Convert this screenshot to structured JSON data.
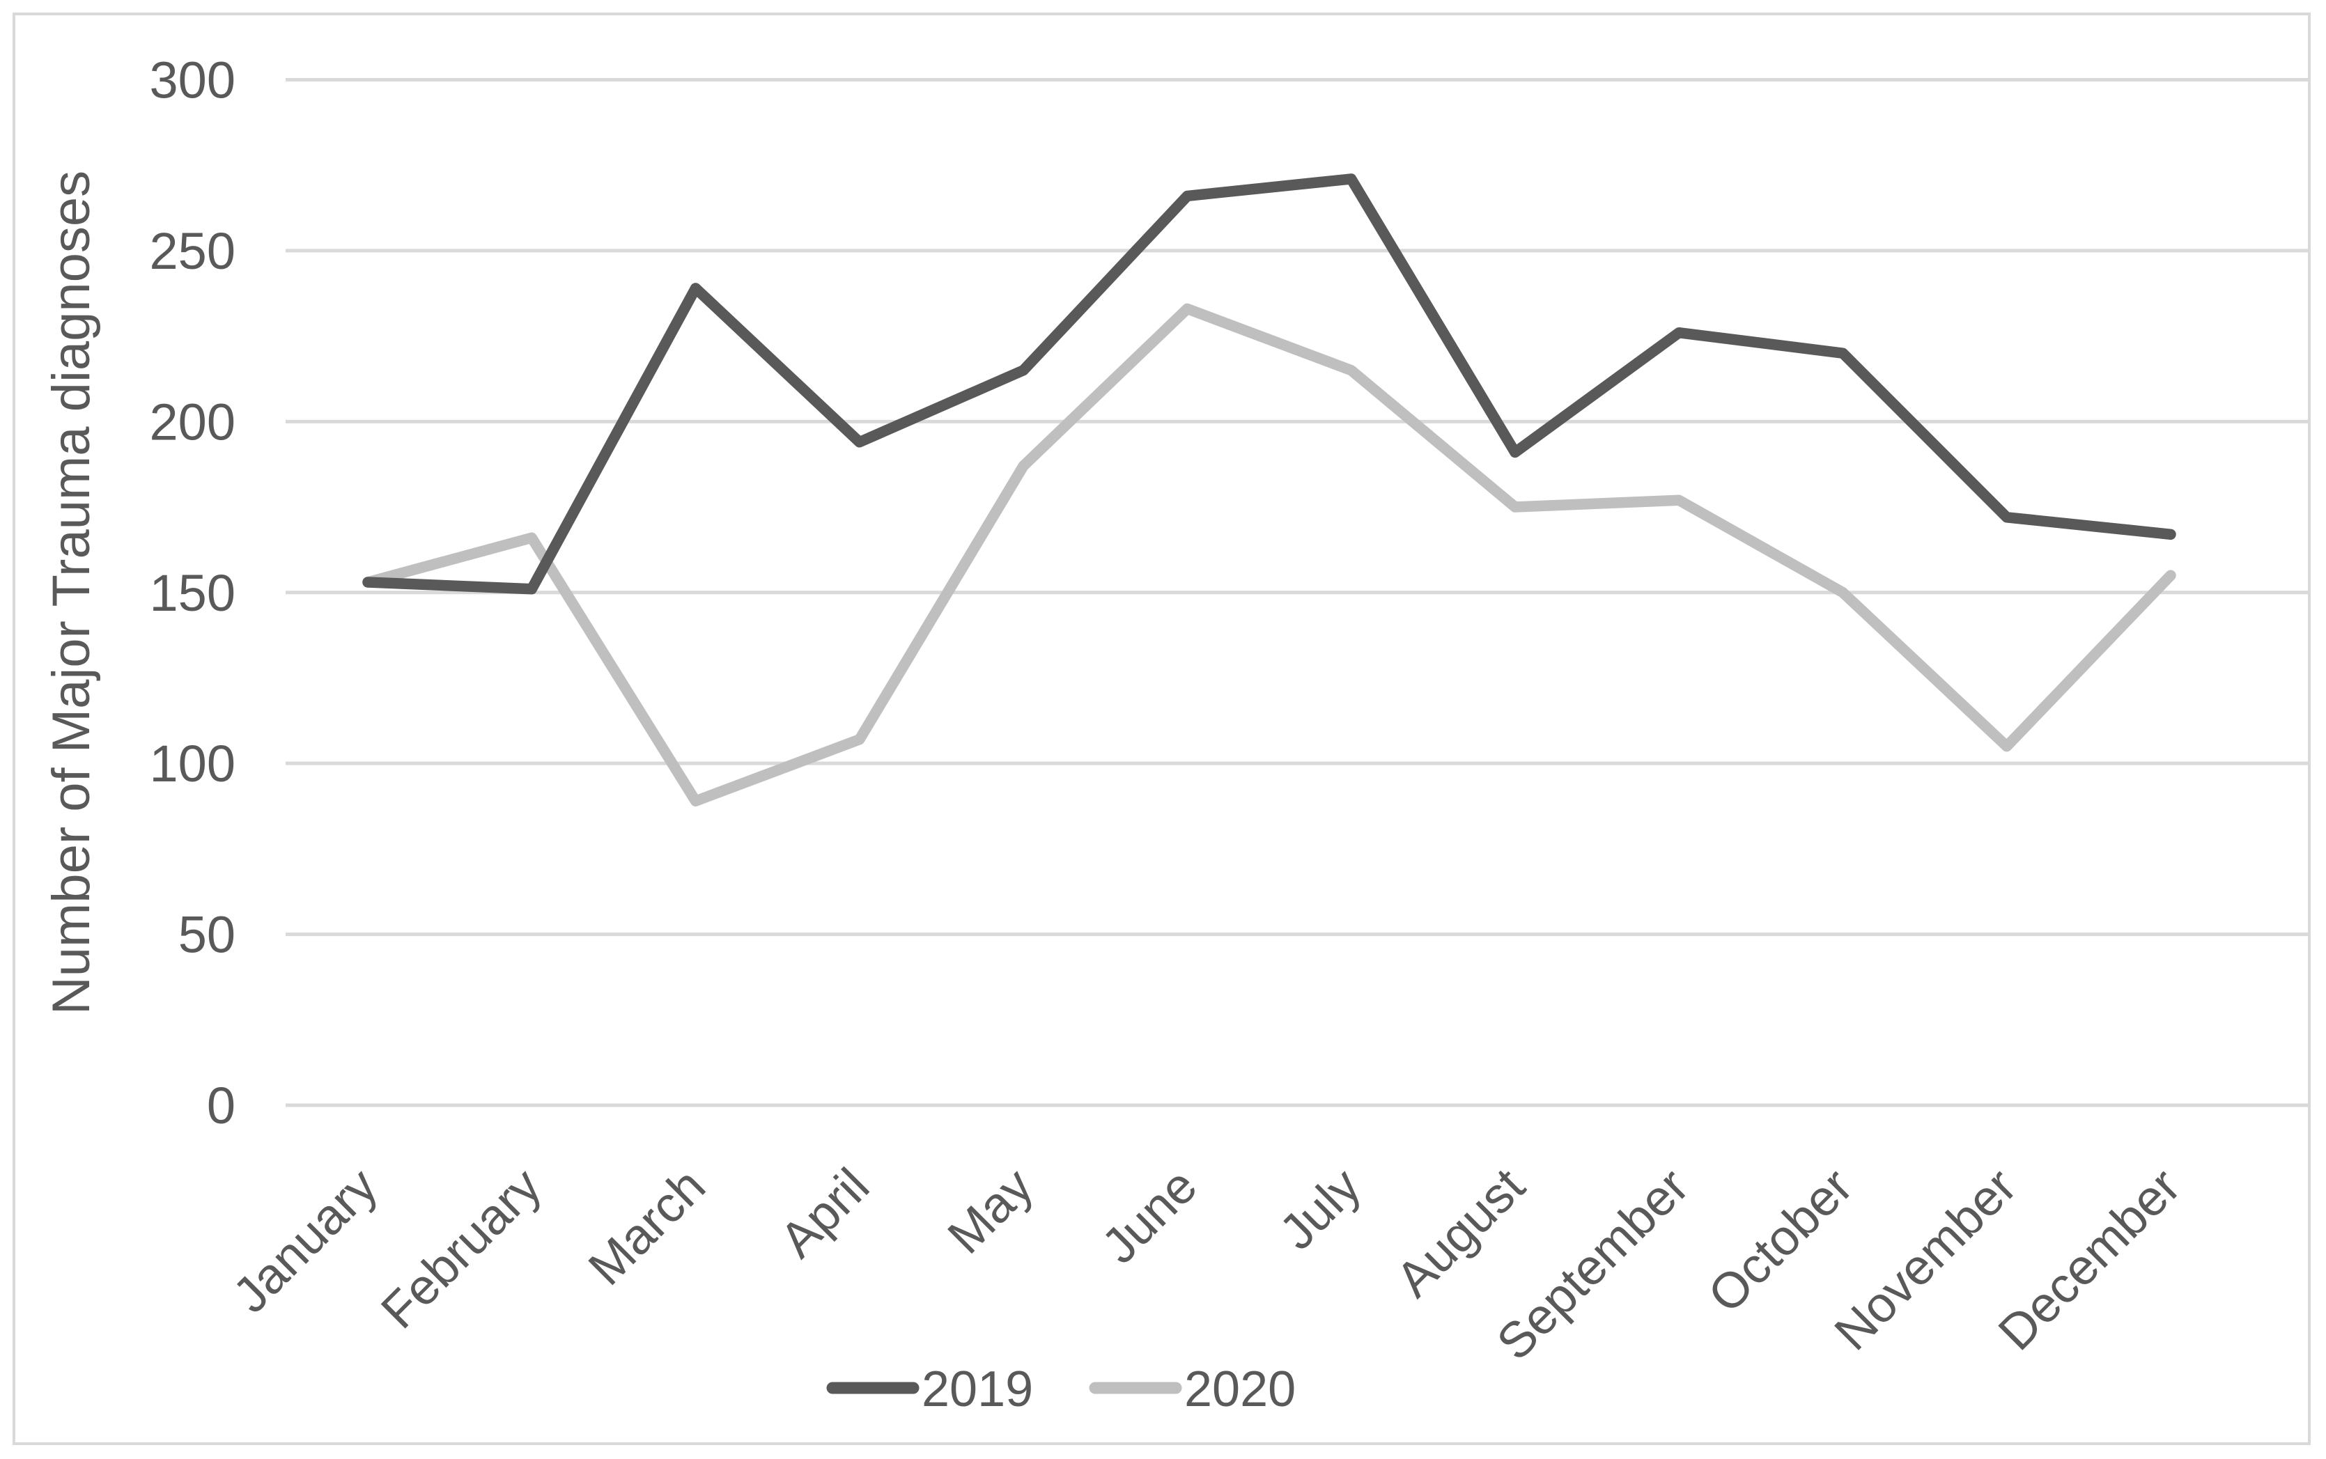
{
  "chart_data": {
    "type": "line",
    "title": "",
    "xlabel": "",
    "ylabel": "Number of Major Trauma diagnoses",
    "categories": [
      "January",
      "February",
      "March",
      "April",
      "May",
      "June",
      "July",
      "August",
      "September",
      "October",
      "November",
      "December"
    ],
    "series": [
      {
        "name": "2019",
        "color": "#595959",
        "values": [
          153,
          151,
          239,
          194,
          215,
          266,
          271,
          191,
          226,
          220,
          172,
          167
        ]
      },
      {
        "name": "2020",
        "color": "#bfbfbf",
        "values": [
          153,
          166,
          89,
          107,
          187,
          233,
          215,
          175,
          177,
          150,
          105,
          155
        ]
      }
    ],
    "ylim": [
      0,
      300
    ],
    "yticks": [
      0,
      50,
      100,
      150,
      200,
      250,
      300
    ],
    "grid": "horizontal",
    "gridline_color": "#d9d9d9",
    "text_color": "#595959",
    "legend_position": "bottom",
    "legend_entries": [
      "2019",
      "2020"
    ]
  }
}
